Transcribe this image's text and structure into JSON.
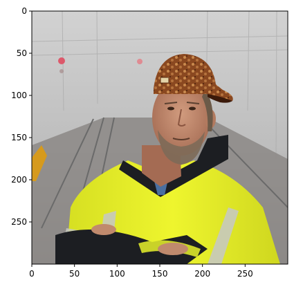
{
  "image": {
    "description_hidden": true,
    "subject": "man-in-hi-vis-jacket-with-scumbag-hat",
    "colors": {
      "sky": "#c9c9c9",
      "fog": "#bdbdbd",
      "jacket": "#e8f22a",
      "jacket_shadow": "#b9c11c",
      "reflective_strip": "#c7c9bf",
      "dark_sleeve": "#1c1e22",
      "skin": "#c08a6d",
      "skin_shadow": "#9a6650",
      "beard": "#7d6a58",
      "hair": "#6c5a48",
      "cap": "#8b4a21",
      "cap_pattern": "#d3a06a",
      "rail": "#8b8b8b",
      "signal_red": "#e0455b",
      "orange_sign": "#d69a1d"
    }
  },
  "axes": {
    "x_ticks": [
      "0",
      "50",
      "100",
      "150",
      "200",
      "250"
    ],
    "y_ticks": [
      "0",
      "50",
      "100",
      "150",
      "200",
      "250"
    ],
    "x_values": [
      0,
      50,
      100,
      150,
      200,
      250
    ],
    "y_values": [
      0,
      50,
      100,
      150,
      200,
      250
    ],
    "x_range": [
      0,
      300
    ],
    "y_range": [
      0,
      300
    ]
  }
}
